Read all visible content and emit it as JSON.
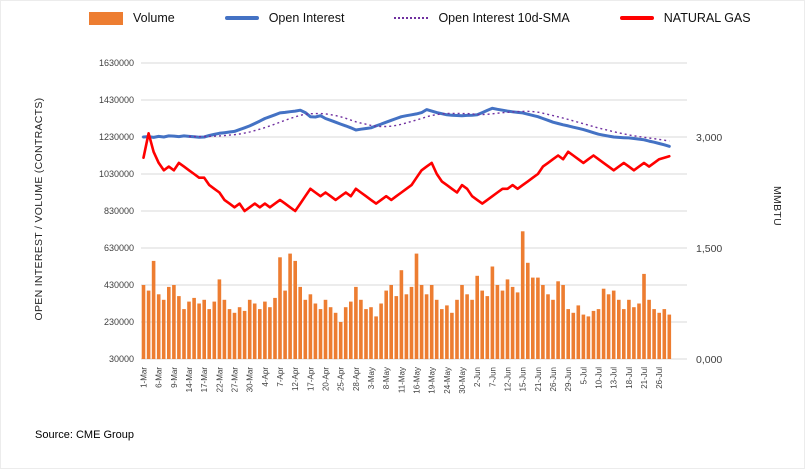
{
  "page": {
    "source": "Source: CME Group"
  },
  "chart_data": {
    "type": "combo",
    "title": "",
    "legend": [
      {
        "label": "Volume",
        "type": "bar",
        "color": "#ED7D31"
      },
      {
        "label": "Open Interest",
        "type": "line",
        "color": "#4472C4"
      },
      {
        "label": "Open Interest 10d-SMA",
        "type": "dotted-line",
        "color": "#7030A0"
      },
      {
        "label": "NATURAL GAS",
        "type": "line",
        "color": "#FF0000"
      }
    ],
    "colors": {
      "grid": "#D9D9D9",
      "text": "#404040"
    },
    "grid": "horizontal",
    "legend_position": "top",
    "left_axis": {
      "title": "OPEN INTEREST / VOLUME (CONTRACTS)",
      "min": 30000,
      "max": 1630000,
      "step": 200000,
      "tick_values": [
        30000,
        230000,
        430000,
        630000,
        830000,
        1030000,
        1230000,
        1430000,
        1630000
      ],
      "tick_labels": [
        "30000",
        "230000",
        "430000",
        "630000",
        "830000",
        "1030000",
        "1230000",
        "1430000",
        "1630000"
      ]
    },
    "right_axis": {
      "title": "MMBTU",
      "min": 0,
      "max": 4,
      "tick_values": [
        0,
        1.5,
        3
      ],
      "tick_labels": [
        "0,000",
        "1,500",
        "3,000"
      ]
    },
    "x_tick_labels": [
      "1-Mar",
      "6-Mar",
      "9-Mar",
      "14-Mar",
      "17-Mar",
      "22-Mar",
      "27-Mar",
      "30-Mar",
      "4-Apr",
      "7-Apr",
      "12-Apr",
      "17-Apr",
      "20-Apr",
      "25-Apr",
      "28-Apr",
      "3-May",
      "8-May",
      "11-May",
      "16-May",
      "19-May",
      "24-May",
      "30-May",
      "2-Jun",
      "7-Jun",
      "12-Jun",
      "15-Jun",
      "21-Jun",
      "26-Jun",
      "29-Jun",
      "5-Jul",
      "10-Jul",
      "13-Jul",
      "18-Jul",
      "21-Jul",
      "26-Jul"
    ],
    "points_per_tick": 3,
    "series": {
      "volume": [
        430000,
        400000,
        560000,
        380000,
        350000,
        420000,
        430000,
        370000,
        300000,
        340000,
        360000,
        330000,
        350000,
        300000,
        340000,
        460000,
        350000,
        300000,
        280000,
        310000,
        290000,
        350000,
        330000,
        300000,
        340000,
        310000,
        360000,
        580000,
        400000,
        600000,
        560000,
        420000,
        350000,
        380000,
        330000,
        300000,
        350000,
        310000,
        280000,
        230000,
        310000,
        340000,
        420000,
        350000,
        300000,
        310000,
        260000,
        330000,
        400000,
        430000,
        370000,
        510000,
        380000,
        420000,
        600000,
        430000,
        380000,
        430000,
        350000,
        300000,
        320000,
        280000,
        350000,
        430000,
        380000,
        350000,
        480000,
        400000,
        370000,
        530000,
        430000,
        400000,
        460000,
        420000,
        390000,
        720000,
        550000,
        470000,
        470000,
        430000,
        380000,
        350000,
        450000,
        430000,
        300000,
        280000,
        320000,
        270000,
        260000,
        290000,
        300000,
        410000,
        380000,
        400000,
        350000,
        300000,
        350000,
        310000,
        330000,
        490000,
        350000,
        300000,
        280000,
        300000,
        270000
      ],
      "open_interest": [
        1230000,
        1232000,
        1228000,
        1233000,
        1230000,
        1236000,
        1235000,
        1232000,
        1236000,
        1233000,
        1231000,
        1229000,
        1230000,
        1238000,
        1244000,
        1250000,
        1253000,
        1257000,
        1260000,
        1270000,
        1280000,
        1290000,
        1303000,
        1316000,
        1330000,
        1340000,
        1350000,
        1360000,
        1363000,
        1367000,
        1370000,
        1375000,
        1362000,
        1340000,
        1338000,
        1345000,
        1330000,
        1320000,
        1310000,
        1300000,
        1290000,
        1280000,
        1268000,
        1272000,
        1276000,
        1280000,
        1290000,
        1300000,
        1310000,
        1320000,
        1330000,
        1340000,
        1345000,
        1350000,
        1355000,
        1362000,
        1378000,
        1370000,
        1362000,
        1356000,
        1350000,
        1348000,
        1346000,
        1345000,
        1347000,
        1348000,
        1350000,
        1362000,
        1374000,
        1385000,
        1380000,
        1375000,
        1370000,
        1366000,
        1363000,
        1360000,
        1353000,
        1347000,
        1340000,
        1330000,
        1320000,
        1310000,
        1303000,
        1296000,
        1290000,
        1283000,
        1277000,
        1270000,
        1262000,
        1253000,
        1245000,
        1240000,
        1235000,
        1230000,
        1228000,
        1226000,
        1225000,
        1222000,
        1218000,
        1215000,
        1208000,
        1202000,
        1195000,
        1188000,
        1180000
      ],
      "open_interest_sma_window": 10,
      "natural_gas": [
        2.72,
        3.05,
        2.8,
        2.65,
        2.55,
        2.6,
        2.55,
        2.65,
        2.6,
        2.55,
        2.5,
        2.45,
        2.45,
        2.35,
        2.3,
        2.25,
        2.15,
        2.1,
        2.05,
        2.1,
        2.0,
        2.05,
        2.1,
        2.05,
        2.1,
        2.05,
        2.1,
        2.15,
        2.1,
        2.05,
        2.0,
        2.1,
        2.2,
        2.3,
        2.25,
        2.2,
        2.25,
        2.2,
        2.15,
        2.2,
        2.25,
        2.2,
        2.3,
        2.25,
        2.2,
        2.15,
        2.1,
        2.15,
        2.2,
        2.15,
        2.2,
        2.25,
        2.3,
        2.35,
        2.45,
        2.55,
        2.6,
        2.65,
        2.5,
        2.4,
        2.35,
        2.3,
        2.25,
        2.35,
        2.3,
        2.2,
        2.15,
        2.1,
        2.15,
        2.2,
        2.25,
        2.3,
        2.3,
        2.35,
        2.3,
        2.35,
        2.4,
        2.45,
        2.5,
        2.6,
        2.65,
        2.7,
        2.75,
        2.7,
        2.8,
        2.75,
        2.7,
        2.65,
        2.7,
        2.75,
        2.7,
        2.65,
        2.6,
        2.55,
        2.6,
        2.65,
        2.6,
        2.55,
        2.6,
        2.65,
        2.6,
        2.65,
        2.7,
        2.72,
        2.74
      ]
    }
  }
}
